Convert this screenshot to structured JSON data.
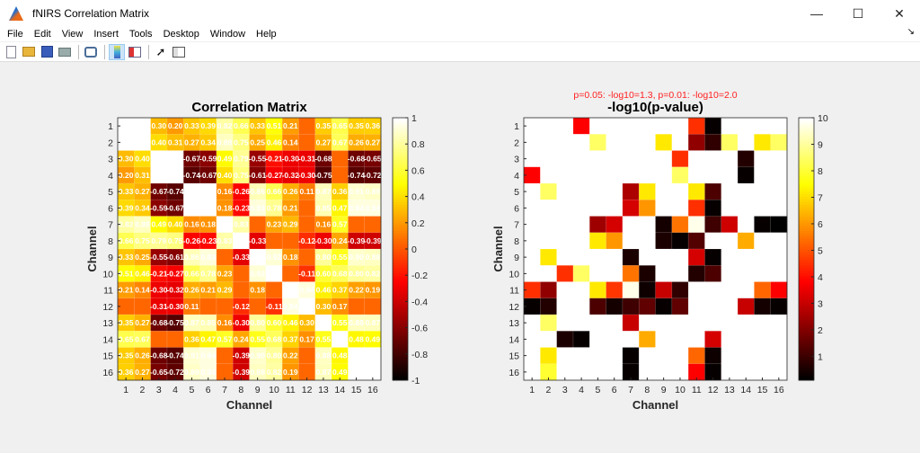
{
  "window": {
    "title": "fNIRS Correlation Matrix",
    "minimize": "—",
    "maximize": "☐",
    "close": "✕"
  },
  "menu": [
    "File",
    "Edit",
    "View",
    "Insert",
    "Tools",
    "Desktop",
    "Window",
    "Help"
  ],
  "menu_dock": "↘",
  "toolbar": [
    "new-file-icon",
    "open-folder-icon",
    "save-icon",
    "print-icon",
    "link-figure-icon",
    "colorbar-icon",
    "legend-icon",
    "pointer-icon",
    "property-inspector-icon"
  ],
  "chart_data": [
    {
      "type": "heatmap",
      "title": "Correlation Matrix",
      "xlabel": "Channel",
      "ylabel": "Channel",
      "colormap": "hot",
      "clim": [
        -1,
        1
      ],
      "ticks": [
        "1",
        "2",
        "3",
        "4",
        "5",
        "6",
        "7",
        "8",
        "9",
        "10",
        "11",
        "12",
        "13",
        "14",
        "15",
        "16"
      ],
      "colorbar_ticks": [
        "1",
        "0.8",
        "0.6",
        "0.4",
        "0.2",
        "0",
        "-0.2",
        "-0.4",
        "-0.6",
        "-0.8",
        "-1"
      ],
      "colorbar_values": [
        1,
        0.8,
        0.6,
        0.4,
        0.2,
        0,
        -0.2,
        -0.4,
        -0.6,
        -0.8,
        -1
      ],
      "values": [
        [
          1,
          null,
          0.3,
          0.2,
          0.33,
          0.39,
          0.82,
          0.66,
          0.33,
          0.51,
          0.21,
          0.05,
          0.35,
          0.65,
          0.35,
          0.36
        ],
        [
          null,
          1,
          0.4,
          0.31,
          0.27,
          0.34,
          0.88,
          0.75,
          0.25,
          0.46,
          0.14,
          0.05,
          0.27,
          0.67,
          0.26,
          0.27
        ],
        [
          0.3,
          0.4,
          1,
          null,
          -0.67,
          -0.59,
          0.49,
          0.79,
          -0.55,
          -0.21,
          -0.3,
          -0.31,
          -0.68,
          0.05,
          -0.68,
          -0.65
        ],
        [
          0.2,
          0.31,
          null,
          1,
          -0.74,
          -0.67,
          0.4,
          0.75,
          -0.61,
          -0.27,
          -0.32,
          -0.3,
          -0.75,
          0.05,
          -0.74,
          -0.72
        ],
        [
          0.33,
          0.27,
          -0.67,
          -0.74,
          1,
          null,
          0.16,
          -0.26,
          0.86,
          0.66,
          0.26,
          0.11,
          0.87,
          0.36,
          0.91,
          0.89
        ],
        [
          0.39,
          0.34,
          -0.59,
          -0.67,
          null,
          1,
          0.18,
          -0.23,
          0.93,
          0.78,
          0.21,
          0.05,
          0.85,
          0.47,
          0.94,
          0.94
        ],
        [
          0.82,
          0.88,
          0.49,
          0.4,
          0.16,
          0.18,
          1,
          0.83,
          0.05,
          0.23,
          0.29,
          0.05,
          0.16,
          0.57,
          0.05,
          0.05
        ],
        [
          0.66,
          0.75,
          0.79,
          0.75,
          -0.26,
          -0.23,
          0.83,
          1,
          -0.33,
          0.05,
          0.05,
          -0.12,
          -0.3,
          0.24,
          -0.39,
          -0.39
        ],
        [
          0.33,
          0.25,
          -0.55,
          -0.61,
          0.86,
          0.93,
          0.05,
          -0.33,
          1,
          0.92,
          0.18,
          0.05,
          0.8,
          0.55,
          0.9,
          0.88
        ],
        [
          0.51,
          0.46,
          -0.21,
          -0.27,
          0.66,
          0.78,
          0.23,
          0.05,
          0.92,
          1,
          0.05,
          -0.11,
          0.6,
          0.68,
          0.8,
          0.82
        ],
        [
          0.21,
          0.14,
          -0.3,
          -0.32,
          0.26,
          0.21,
          0.29,
          0.05,
          0.18,
          0.05,
          1,
          0.94,
          0.46,
          0.37,
          0.22,
          0.19
        ],
        [
          0.05,
          0.05,
          -0.31,
          -0.3,
          0.11,
          0.05,
          0.05,
          -0.12,
          0.05,
          -0.11,
          0.94,
          1,
          0.3,
          0.17,
          0.05,
          0.05
        ],
        [
          0.35,
          0.27,
          -0.68,
          -0.75,
          0.87,
          0.85,
          0.16,
          -0.3,
          0.8,
          0.6,
          0.46,
          0.3,
          1,
          0.55,
          0.88,
          0.87
        ],
        [
          0.65,
          0.67,
          0.05,
          0.05,
          0.36,
          0.47,
          0.57,
          0.24,
          0.55,
          0.68,
          0.37,
          0.17,
          0.55,
          1,
          0.48,
          0.49
        ],
        [
          0.35,
          0.26,
          -0.68,
          -0.74,
          0.91,
          0.94,
          0.05,
          -0.39,
          0.9,
          0.8,
          0.22,
          0.05,
          0.88,
          0.48,
          1,
          null
        ],
        [
          0.36,
          0.27,
          -0.65,
          -0.72,
          0.89,
          0.94,
          0.05,
          -0.39,
          0.88,
          0.82,
          0.19,
          0.05,
          0.87,
          0.49,
          null,
          1
        ]
      ]
    },
    {
      "type": "heatmap",
      "title": "-log10(p-value)",
      "subtitle": "p=0.05: -log10=1.3, p=0.01: -log10=2.0",
      "xlabel": "Channel",
      "ylabel": "Channel",
      "colormap": "hot",
      "clim": [
        0.1,
        10
      ],
      "ticks": [
        "1",
        "2",
        "3",
        "4",
        "5",
        "6",
        "7",
        "8",
        "9",
        "10",
        "11",
        "12",
        "13",
        "14",
        "15",
        "16"
      ],
      "colorbar_ticks": [
        "10",
        "9",
        "8",
        "7",
        "6",
        "5",
        "4",
        "3",
        "2",
        "1"
      ],
      "colorbar_values": [
        10,
        9,
        8,
        7,
        6,
        5,
        4,
        3,
        2,
        1
      ],
      "values": [
        [
          null,
          null,
          null,
          3.8,
          null,
          null,
          null,
          null,
          null,
          null,
          4.5,
          0.2,
          null,
          null,
          null,
          null
        ],
        [
          null,
          null,
          null,
          null,
          8.5,
          null,
          null,
          null,
          7.2,
          null,
          2.2,
          0.8,
          8.5,
          null,
          7.2,
          8.5
        ],
        [
          null,
          null,
          null,
          null,
          null,
          null,
          null,
          null,
          null,
          4.5,
          null,
          null,
          null,
          0.6,
          null,
          null
        ],
        [
          3.8,
          null,
          null,
          null,
          null,
          null,
          null,
          null,
          null,
          8.5,
          null,
          null,
          null,
          0.2,
          null,
          null
        ],
        [
          null,
          8.5,
          null,
          null,
          null,
          null,
          2.6,
          7.2,
          null,
          null,
          7.2,
          1.2,
          null,
          null,
          null,
          null
        ],
        [
          null,
          null,
          null,
          null,
          null,
          null,
          3.2,
          6.0,
          null,
          null,
          4.5,
          0.2,
          null,
          null,
          null,
          null
        ],
        [
          null,
          null,
          null,
          null,
          2.4,
          3.2,
          null,
          null,
          0.4,
          5.5,
          9.8,
          1.0,
          3.1,
          null,
          0.2,
          0.1
        ],
        [
          null,
          null,
          null,
          null,
          7.2,
          6.0,
          null,
          null,
          0.5,
          0.2,
          1.3,
          null,
          null,
          6.3,
          null,
          null
        ],
        [
          null,
          7.2,
          null,
          null,
          null,
          null,
          0.5,
          null,
          null,
          null,
          3.2,
          0.2,
          null,
          null,
          null,
          null
        ],
        [
          null,
          null,
          4.5,
          8.5,
          null,
          null,
          5.5,
          0.5,
          null,
          null,
          0.6,
          1.2,
          null,
          null,
          null,
          null
        ],
        [
          4.5,
          2.2,
          null,
          null,
          7.2,
          4.6,
          9.8,
          0.3,
          3.0,
          0.8,
          null,
          null,
          null,
          null,
          5.3,
          3.8
        ],
        [
          0.2,
          0.6,
          null,
          null,
          1.2,
          0.4,
          1.0,
          1.5,
          0.2,
          1.5,
          null,
          null,
          null,
          3.0,
          0.4,
          0.2
        ],
        [
          null,
          8.5,
          null,
          null,
          null,
          null,
          3.0,
          null,
          null,
          null,
          null,
          null,
          null,
          null,
          null,
          null
        ],
        [
          null,
          null,
          0.5,
          0.2,
          null,
          null,
          null,
          6.3,
          null,
          null,
          null,
          3.2,
          null,
          null,
          null,
          null
        ],
        [
          null,
          7.2,
          null,
          null,
          null,
          null,
          0.2,
          null,
          null,
          null,
          5.3,
          0.3,
          null,
          null,
          null,
          null
        ],
        [
          null,
          8.0,
          null,
          null,
          null,
          null,
          0.2,
          null,
          null,
          null,
          3.8,
          0.2,
          null,
          null,
          null,
          null
        ]
      ]
    }
  ],
  "colors": {
    "subtitle": "#ff2020",
    "bg": "#f0f0f0"
  }
}
